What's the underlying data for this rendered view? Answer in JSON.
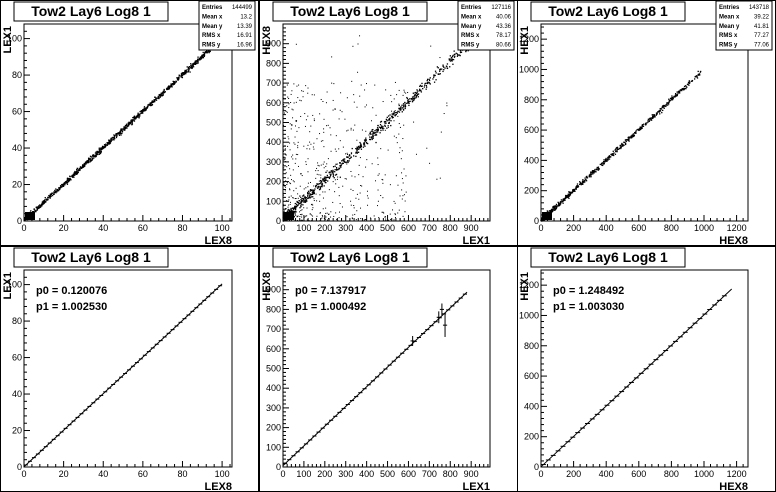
{
  "chart_data": [
    {
      "type": "scatter",
      "title": "Tow2 Lay6 Log8 1",
      "xlabel": "LEX8",
      "ylabel": "LEX1",
      "xlim": [
        0,
        105
      ],
      "ylim": [
        0,
        108
      ],
      "xticks": [
        0,
        20,
        40,
        60,
        80,
        100
      ],
      "yticks": [
        0,
        20,
        40,
        60,
        80,
        100
      ],
      "stats": [
        {
          "label": "Entries",
          "value": "144499"
        },
        {
          "label": "Mean x",
          "value": "13.2"
        },
        {
          "label": "Mean y",
          "value": "13.39"
        },
        {
          "label": "RMS x",
          "value": "16.91"
        },
        {
          "label": "RMS y",
          "value": "16.96"
        }
      ],
      "band": {
        "x_range": [
          0,
          95
        ],
        "slope": 1.0,
        "intercept": 0.2,
        "spread": 0.7
      }
    },
    {
      "type": "scatter",
      "title": "Tow2 Lay6 Log8 1",
      "xlabel": "LEX1",
      "ylabel": "HEX8",
      "xlim": [
        0,
        990
      ],
      "ylim": [
        0,
        1000
      ],
      "xticks": [
        0,
        100,
        200,
        300,
        400,
        500,
        600,
        700,
        800,
        900
      ],
      "yticks": [
        0,
        100,
        200,
        300,
        400,
        500,
        600,
        700,
        800,
        900
      ],
      "stats": [
        {
          "label": "Entries",
          "value": "127116"
        },
        {
          "label": "Mean x",
          "value": "40.06"
        },
        {
          "label": "Mean y",
          "value": "43.36"
        },
        {
          "label": "RMS x",
          "value": "78.17"
        },
        {
          "label": "RMS y",
          "value": "80.66"
        }
      ],
      "band": {
        "x_range": [
          0,
          910
        ],
        "slope": 1.0,
        "intercept": 7,
        "spread": 12
      },
      "halo": {
        "x_range": [
          0,
          600
        ],
        "y_range": [
          0,
          700
        ]
      }
    },
    {
      "type": "scatter",
      "title": "Tow2 Lay6 Log8 1",
      "xlabel": "HEX8",
      "ylabel": "HEX1",
      "xlim": [
        0,
        1270
      ],
      "ylim": [
        0,
        1300
      ],
      "xticks": [
        0,
        200,
        400,
        600,
        800,
        1000,
        1200
      ],
      "yticks": [
        0,
        200,
        400,
        600,
        800,
        1000,
        1200
      ],
      "stats": [
        {
          "label": "Entries",
          "value": "143718"
        },
        {
          "label": "Mean x",
          "value": "39.22"
        },
        {
          "label": "Mean y",
          "value": "41.81"
        },
        {
          "label": "RMS x",
          "value": "77.27"
        },
        {
          "label": "RMS y",
          "value": "77.06"
        }
      ],
      "band": {
        "x_range": [
          0,
          980
        ],
        "slope": 1.0,
        "intercept": 1,
        "spread": 8
      }
    },
    {
      "type": "line",
      "title": "Tow2 Lay6 Log8 1",
      "xlabel": "LEX8",
      "ylabel": "LEX1",
      "xlim": [
        0,
        105
      ],
      "ylim": [
        0,
        108
      ],
      "xticks": [
        0,
        20,
        40,
        60,
        80,
        100
      ],
      "yticks": [
        0,
        20,
        40,
        60,
        80,
        100
      ],
      "fit": {
        "p0": 0.120076,
        "p1": 1.00253,
        "x_range": [
          0,
          100
        ]
      },
      "fit_text": [
        "p0 = 0.120076",
        "p1 = 1.002530"
      ],
      "profile": {
        "x_start": 1,
        "x_end": 99,
        "step": 2,
        "half_width": 1
      }
    },
    {
      "type": "line",
      "title": "Tow2 Lay6 Log8 1",
      "xlabel": "LEX1",
      "ylabel": "HEX8",
      "xlim": [
        0,
        990
      ],
      "ylim": [
        0,
        1000
      ],
      "xticks": [
        0,
        100,
        200,
        300,
        400,
        500,
        600,
        700,
        800,
        900
      ],
      "yticks": [
        0,
        100,
        200,
        300,
        400,
        500,
        600,
        700,
        800,
        900
      ],
      "fit": {
        "p0": 7.137917,
        "p1": 1.000492,
        "x_range": [
          0,
          880
        ]
      },
      "fit_text": [
        "p0 = 7.137917",
        "p1 = 1.000492"
      ],
      "profile": {
        "x_start": 10,
        "x_end": 870,
        "step": 20,
        "half_width": 10
      },
      "outliers": [
        {
          "x": 620,
          "y": 640,
          "err": 25
        },
        {
          "x": 745,
          "y": 760,
          "err": 30
        },
        {
          "x": 760,
          "y": 800,
          "err": 30
        },
        {
          "x": 775,
          "y": 720,
          "err": 60
        }
      ]
    },
    {
      "type": "line",
      "title": "Tow2 Lay6 Log8 1",
      "xlabel": "HEX8",
      "ylabel": "HEX1",
      "xlim": [
        0,
        1270
      ],
      "ylim": [
        0,
        1300
      ],
      "xticks": [
        0,
        200,
        400,
        600,
        800,
        1000,
        1200
      ],
      "yticks": [
        0,
        200,
        400,
        600,
        800,
        1000,
        1200
      ],
      "fit": {
        "p0": 1.248492,
        "p1": 1.00303,
        "x_range": [
          0,
          1170
        ]
      },
      "fit_text": [
        "p0 = 1.248492",
        "p1 = 1.003030"
      ],
      "profile": {
        "x_start": 15,
        "x_end": 1125,
        "step": 30,
        "half_width": 15
      }
    }
  ]
}
